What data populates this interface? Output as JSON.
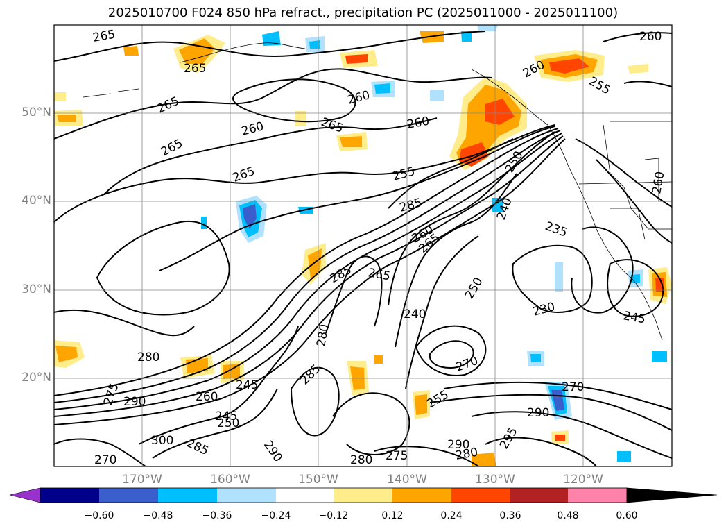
{
  "title": "2025010700 F024 850 hPa refract., precipitation PC (2025011000 - 2025011100)",
  "map": {
    "lat_labels": [
      "50°N",
      "40°N",
      "30°N",
      "20°N"
    ],
    "lon_labels": [
      "170°W",
      "160°W",
      "150°W",
      "140°W",
      "130°W",
      "120°W"
    ],
    "contour_labels": [
      {
        "text": "265"
      },
      {
        "text": "265"
      },
      {
        "text": "265"
      },
      {
        "text": "265"
      },
      {
        "text": "265"
      },
      {
        "text": "265"
      },
      {
        "text": "260"
      },
      {
        "text": "260"
      },
      {
        "text": "260"
      },
      {
        "text": "260"
      },
      {
        "text": "260"
      },
      {
        "text": "255"
      },
      {
        "text": "255"
      },
      {
        "text": "250"
      },
      {
        "text": "240"
      },
      {
        "text": "235"
      },
      {
        "text": "230"
      },
      {
        "text": "245"
      },
      {
        "text": "285"
      },
      {
        "text": "285"
      },
      {
        "text": "260"
      },
      {
        "text": "265"
      },
      {
        "text": "265"
      },
      {
        "text": "280"
      },
      {
        "text": "285"
      },
      {
        "text": "280"
      },
      {
        "text": "280"
      },
      {
        "text": "280"
      },
      {
        "text": "290"
      },
      {
        "text": "290"
      },
      {
        "text": "290"
      },
      {
        "text": "295"
      },
      {
        "text": "270"
      },
      {
        "text": "270"
      },
      {
        "text": "275"
      },
      {
        "text": "255"
      },
      {
        "text": "250"
      },
      {
        "text": "240"
      },
      {
        "text": "260"
      },
      {
        "text": "245"
      },
      {
        "text": "250"
      },
      {
        "text": "270"
      },
      {
        "text": "300"
      },
      {
        "text": "285"
      },
      {
        "text": "290"
      },
      {
        "text": "260"
      },
      {
        "text": "245"
      },
      {
        "text": "275"
      }
    ]
  },
  "colorbar": {
    "ticks": [
      "−0.60",
      "−0.48",
      "−0.36",
      "−0.24",
      "−0.12",
      "0.12",
      "0.24",
      "0.36",
      "0.48",
      "0.60"
    ],
    "colors": [
      "#9932cc",
      "#00008b",
      "#3a5fcd",
      "#00bfff",
      "#b0e2ff",
      "#ffffff",
      "#ffec8b",
      "#ffa500",
      "#ff4500",
      "#b22222",
      "#ff82ab"
    ]
  }
}
